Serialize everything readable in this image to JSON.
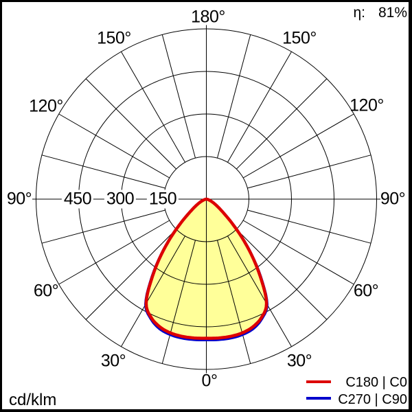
{
  "header": {
    "eta_label": "η:",
    "eta_value": "81%"
  },
  "footer": {
    "unit_label": "cd/klm"
  },
  "legend": {
    "items": [
      {
        "label": "C180 | C0",
        "color": "#dd0000"
      },
      {
        "label": "C270 | C90",
        "color": "#0000cc"
      }
    ]
  },
  "polar_labels": {
    "top": "180°",
    "upper_left": "150°",
    "upper_right": "150°",
    "mid_left": "120°",
    "mid_right": "120°",
    "left": "90°",
    "right": "90°",
    "low_left": "60°",
    "low_right": "60°",
    "lower_left": "30°",
    "lower_right": "30°",
    "bottom": "0°"
  },
  "ring_labels": [
    "450",
    "300",
    "150"
  ],
  "chart_data": {
    "type": "polar",
    "description": "Luminous intensity distribution curve of a luminaire",
    "unit": "cd/klm",
    "efficiency": "81%",
    "r_max": 600,
    "ring_values": [
      150,
      300,
      450,
      600
    ],
    "spoke_step_deg": 15,
    "angle_labels_deg": [
      0,
      30,
      60,
      90,
      120,
      150,
      180
    ],
    "gamma_step_deg": 5,
    "gamma_deg": [
      0,
      5,
      10,
      15,
      20,
      25,
      30,
      35,
      40,
      45,
      50,
      55,
      60,
      65,
      70,
      75,
      80,
      85,
      90
    ],
    "fill_color": "#ffff99",
    "series": [
      {
        "name": "C180 | C0",
        "color": "#dd0000",
        "values": [
          490,
          491,
          491,
          488,
          479,
          460,
          424,
          330,
          235,
          150,
          88,
          55,
          35,
          22,
          13,
          7,
          3,
          1,
          0
        ]
      },
      {
        "name": "C270 | C90",
        "color": "#0000cc",
        "values": [
          496,
          497,
          497,
          494,
          485,
          464,
          428,
          334,
          237,
          151,
          89,
          55,
          35,
          22,
          13,
          7,
          3,
          1,
          0
        ]
      }
    ]
  }
}
